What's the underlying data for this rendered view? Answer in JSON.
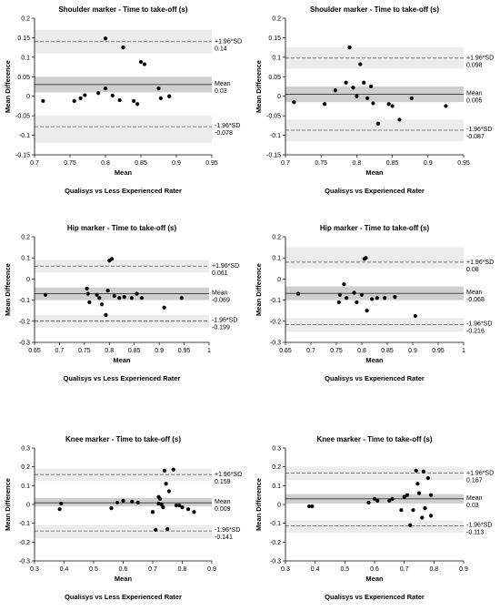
{
  "chart_data": [
    {
      "type": "scatter",
      "title": "Shoulder marker - Time to take-off (s)",
      "xlabel": "Mean",
      "ylabel": "Mean Difference",
      "caption": "Qualisys vs Less Experienced Rater",
      "xlim": [
        0.7,
        0.95
      ],
      "ylim": [
        -0.15,
        0.2
      ],
      "xticks": [
        "0.7",
        "0.75",
        "0.8",
        "0.85",
        "0.9",
        "0.95"
      ],
      "yticks": [
        "-0.15",
        "-0.1",
        "-0.05",
        "0",
        "0.05",
        "0.1",
        "0.15",
        "0.2"
      ],
      "mean": 0.03,
      "upper": 0.14,
      "lower": -0.078,
      "mean_ci": [
        0.01,
        0.05
      ],
      "upper_ci": [
        0.11,
        0.17
      ],
      "lower_ci": [
        -0.12,
        -0.05
      ],
      "labels": {
        "upper_name": "+1.96*SD",
        "upper_value": "0.14",
        "mean_name": "Mean",
        "mean_value": "0.03",
        "lower_name": "-1.96*SD",
        "lower_value": "-0.078"
      },
      "points": [
        [
          0.712,
          -0.012
        ],
        [
          0.756,
          -0.012
        ],
        [
          0.765,
          -0.005
        ],
        [
          0.771,
          0.003
        ],
        [
          0.79,
          0.008
        ],
        [
          0.8,
          0.148
        ],
        [
          0.8,
          0.02
        ],
        [
          0.81,
          0.002
        ],
        [
          0.82,
          -0.01
        ],
        [
          0.825,
          0.125
        ],
        [
          0.84,
          -0.012
        ],
        [
          0.845,
          -0.02
        ],
        [
          0.85,
          0.088
        ],
        [
          0.855,
          0.082
        ],
        [
          0.875,
          0.02
        ],
        [
          0.878,
          -0.005
        ],
        [
          0.89,
          0.0
        ]
      ]
    },
    {
      "type": "scatter",
      "title": "Shoulder marker - Time to take-off (s)",
      "xlabel": "Mean",
      "ylabel": "Mean Difference",
      "caption": "Qualisys vs Experienced Rater",
      "xlim": [
        0.7,
        0.95
      ],
      "ylim": [
        -0.15,
        0.2
      ],
      "xticks": [
        "0.7",
        "0.75",
        "0.8",
        "0.85",
        "0.9",
        "0.95"
      ],
      "yticks": [
        "-0.15",
        "-0.1",
        "-0.05",
        "0",
        "0.05",
        "0.1",
        "0.15",
        "0.2"
      ],
      "mean": 0.005,
      "upper": 0.098,
      "lower": -0.087,
      "mean_ci": [
        -0.015,
        0.025
      ],
      "upper_ci": [
        0.07,
        0.125
      ],
      "lower_ci": [
        -0.115,
        -0.06
      ],
      "labels": {
        "upper_name": "+1.96*SD",
        "upper_value": "0.098",
        "mean_name": "Mean",
        "mean_value": "0.005",
        "lower_name": "-1.96*SD",
        "lower_value": "-0.087"
      },
      "points": [
        [
          0.712,
          -0.015
        ],
        [
          0.755,
          -0.02
        ],
        [
          0.77,
          0.015
        ],
        [
          0.785,
          0.035
        ],
        [
          0.79,
          0.125
        ],
        [
          0.795,
          0.022
        ],
        [
          0.8,
          0.0
        ],
        [
          0.805,
          0.082
        ],
        [
          0.81,
          0.035
        ],
        [
          0.815,
          -0.005
        ],
        [
          0.82,
          0.025
        ],
        [
          0.823,
          -0.018
        ],
        [
          0.83,
          -0.07
        ],
        [
          0.845,
          -0.02
        ],
        [
          0.85,
          -0.025
        ],
        [
          0.86,
          -0.06
        ],
        [
          0.877,
          -0.005
        ],
        [
          0.925,
          -0.025
        ]
      ]
    },
    {
      "type": "scatter",
      "title": "Hip marker - Time to take-off (s)",
      "xlabel": "Mean",
      "ylabel": "Mean Difference",
      "caption": "Qualisys vs Less Experienced Rater",
      "xlim": [
        0.65,
        1.0
      ],
      "ylim": [
        -0.3,
        0.2
      ],
      "xticks": [
        "0.65",
        "0.7",
        "0.75",
        "0.8",
        "0.85",
        "0.9",
        "0.95",
        "1"
      ],
      "yticks": [
        "-0.3",
        "-0.2",
        "-0.1",
        "0",
        "0.1",
        "0.2"
      ],
      "mean": -0.069,
      "upper": 0.061,
      "lower": -0.199,
      "mean_ci": [
        -0.1,
        -0.04
      ],
      "upper_ci": [
        0.03,
        0.09
      ],
      "lower_ci": [
        -0.23,
        -0.17
      ],
      "labels": {
        "upper_name": "+1.96*SD",
        "upper_value": "0.061",
        "mean_name": "Mean",
        "mean_value": "-0.069",
        "lower_name": "-1.96*SD",
        "lower_value": "-0.199"
      },
      "points": [
        [
          0.672,
          -0.075
        ],
        [
          0.755,
          -0.045
        ],
        [
          0.757,
          -0.07
        ],
        [
          0.76,
          -0.11
        ],
        [
          0.775,
          -0.075
        ],
        [
          0.78,
          -0.09
        ],
        [
          0.785,
          -0.12
        ],
        [
          0.793,
          -0.17
        ],
        [
          0.797,
          -0.055
        ],
        [
          0.8,
          0.087
        ],
        [
          0.805,
          0.095
        ],
        [
          0.81,
          -0.08
        ],
        [
          0.82,
          -0.09
        ],
        [
          0.83,
          -0.085
        ],
        [
          0.845,
          -0.09
        ],
        [
          0.855,
          -0.07
        ],
        [
          0.865,
          -0.09
        ],
        [
          0.91,
          -0.135
        ],
        [
          0.945,
          -0.09
        ]
      ]
    },
    {
      "type": "scatter",
      "title": "Hip marker - Time to take-off (s)",
      "xlabel": "Mean",
      "ylabel": "Mean Difference",
      "caption": "Qualisys vs Experienced Rater",
      "xlim": [
        0.65,
        1.0
      ],
      "ylim": [
        -0.3,
        0.2
      ],
      "xticks": [
        "0.65",
        "0.7",
        "0.75",
        "0.8",
        "0.85",
        "0.9",
        "0.95",
        "1"
      ],
      "yticks": [
        "-0.3",
        "-0.2",
        "-0.1",
        "0",
        "0.1",
        "0.2"
      ],
      "mean": -0.068,
      "upper": 0.08,
      "lower": -0.216,
      "mean_ci": [
        -0.1,
        -0.035
      ],
      "upper_ci": [
        0.05,
        0.15
      ],
      "lower_ci": [
        -0.25,
        -0.185
      ],
      "labels": {
        "upper_name": "+1.96*SD",
        "upper_value": "0.08",
        "mean_name": "Mean",
        "mean_value": "-0.068",
        "lower_name": "-1.96*SD",
        "lower_value": "-0.216"
      },
      "points": [
        [
          0.675,
          -0.07
        ],
        [
          0.755,
          -0.11
        ],
        [
          0.757,
          -0.075
        ],
        [
          0.765,
          -0.025
        ],
        [
          0.77,
          -0.09
        ],
        [
          0.785,
          -0.065
        ],
        [
          0.79,
          -0.11
        ],
        [
          0.8,
          -0.075
        ],
        [
          0.805,
          0.095
        ],
        [
          0.808,
          0.1
        ],
        [
          0.81,
          -0.15
        ],
        [
          0.82,
          -0.095
        ],
        [
          0.83,
          -0.09
        ],
        [
          0.845,
          -0.09
        ],
        [
          0.865,
          -0.085
        ],
        [
          0.905,
          -0.175
        ]
      ]
    },
    {
      "type": "scatter",
      "title": "Knee marker - Time to take-off (s)",
      "xlabel": "Mean",
      "ylabel": "Mean Difference",
      "caption": "Qualisys vs Less Experienced Rater",
      "xlim": [
        0.3,
        0.9
      ],
      "ylim": [
        -0.3,
        0.3
      ],
      "xticks": [
        "0.3",
        "0.4",
        "0.5",
        "0.6",
        "0.7",
        "0.8",
        "0.9"
      ],
      "yticks": [
        "-0.3",
        "-0.2",
        "-0.1",
        "0",
        "0.1",
        "0.2",
        "0.3"
      ],
      "mean": 0.009,
      "upper": 0.159,
      "lower": -0.141,
      "mean_ci": [
        -0.01,
        0.035
      ],
      "upper_ci": [
        0.125,
        0.19
      ],
      "lower_ci": [
        -0.18,
        -0.11
      ],
      "labels": {
        "upper_name": "+1.96*SD",
        "upper_value": "0.159",
        "mean_name": "Mean",
        "mean_value": "0.009",
        "lower_name": "-1.96*SD",
        "lower_value": "-0.141"
      },
      "points": [
        [
          0.385,
          -0.025
        ],
        [
          0.39,
          0.005
        ],
        [
          0.56,
          -0.02
        ],
        [
          0.58,
          0.01
        ],
        [
          0.6,
          0.02
        ],
        [
          0.63,
          0.015
        ],
        [
          0.65,
          0.01
        ],
        [
          0.7,
          -0.04
        ],
        [
          0.71,
          -0.135
        ],
        [
          0.72,
          0.04
        ],
        [
          0.72,
          0.005
        ],
        [
          0.725,
          0.03
        ],
        [
          0.73,
          0.0
        ],
        [
          0.735,
          -0.015
        ],
        [
          0.74,
          0.18
        ],
        [
          0.745,
          0.11
        ],
        [
          0.75,
          -0.13
        ],
        [
          0.755,
          0.07
        ],
        [
          0.77,
          0.185
        ],
        [
          0.78,
          -0.005
        ],
        [
          0.79,
          -0.005
        ],
        [
          0.8,
          -0.015
        ],
        [
          0.82,
          -0.025
        ],
        [
          0.84,
          -0.04
        ]
      ]
    },
    {
      "type": "scatter",
      "title": "Knee marker - Time to take-off (s)",
      "xlabel": "Mean",
      "ylabel": "Mean Difference",
      "caption": "Qualisys vs Experienced Rater",
      "xlim": [
        0.3,
        0.9
      ],
      "ylim": [
        -0.3,
        0.3
      ],
      "xticks": [
        "0.3",
        "0.4",
        "0.5",
        "0.6",
        "0.7",
        "0.8",
        "0.9"
      ],
      "yticks": [
        "-0.3",
        "-0.2",
        "-0.1",
        "0",
        "0.1",
        "0.2",
        "0.3"
      ],
      "mean": 0.03,
      "upper": 0.167,
      "lower": -0.113,
      "mean_ci": [
        0.005,
        0.055
      ],
      "upper_ci": [
        0.13,
        0.2
      ],
      "lower_ci": [
        -0.15,
        -0.085
      ],
      "labels": {
        "upper_name": "+1.96*SD",
        "upper_value": "0.167",
        "mean_name": "Mean",
        "mean_value": "0.03",
        "lower_name": "-1.96*SD",
        "lower_value": "-0.113"
      },
      "points": [
        [
          0.38,
          -0.01
        ],
        [
          0.39,
          -0.01
        ],
        [
          0.58,
          0.01
        ],
        [
          0.6,
          0.03
        ],
        [
          0.61,
          0.02
        ],
        [
          0.65,
          0.02
        ],
        [
          0.66,
          0.03
        ],
        [
          0.69,
          -0.03
        ],
        [
          0.7,
          0.04
        ],
        [
          0.71,
          0.05
        ],
        [
          0.72,
          -0.11
        ],
        [
          0.73,
          -0.03
        ],
        [
          0.74,
          0.18
        ],
        [
          0.745,
          0.11
        ],
        [
          0.75,
          0.06
        ],
        [
          0.76,
          -0.07
        ],
        [
          0.765,
          0.175
        ],
        [
          0.77,
          -0.02
        ],
        [
          0.78,
          0.14
        ],
        [
          0.79,
          -0.06
        ],
        [
          0.79,
          0.05
        ]
      ]
    }
  ]
}
